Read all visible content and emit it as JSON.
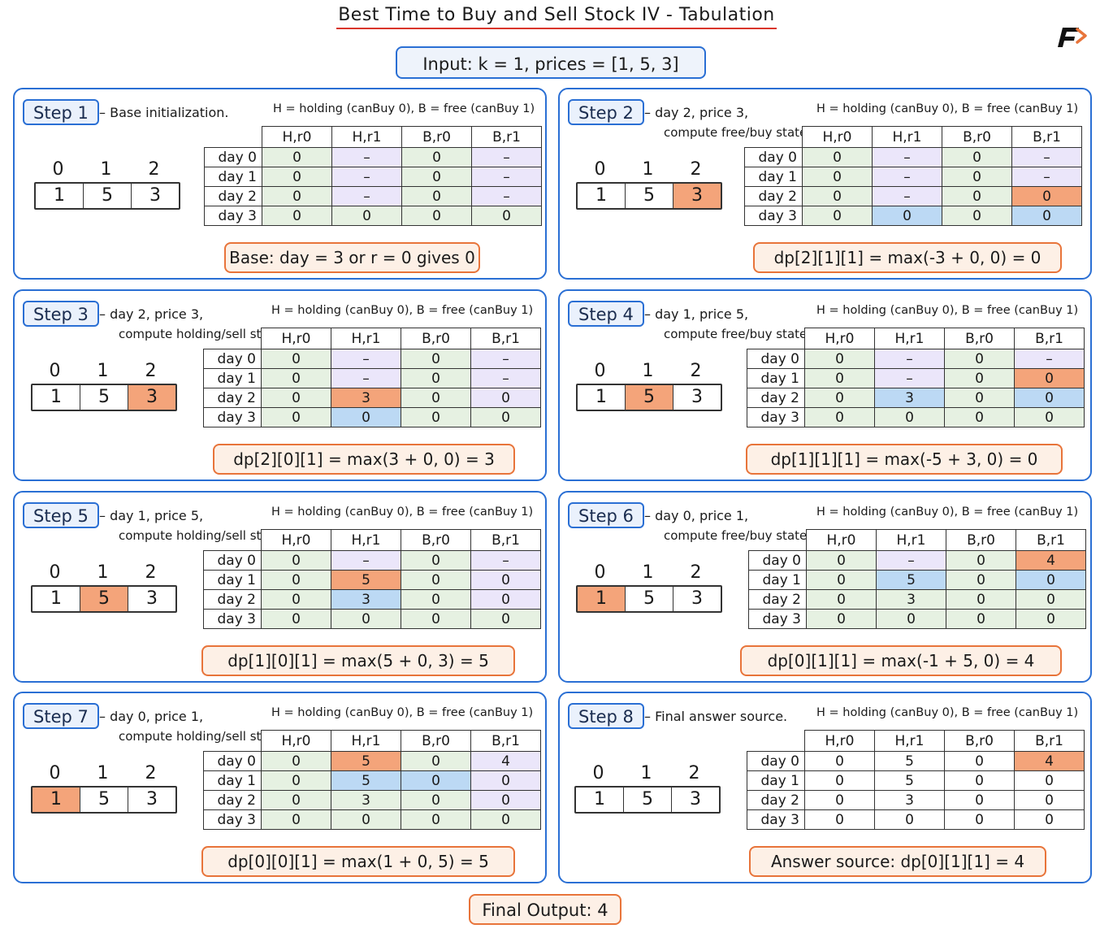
{
  "title": "Best Time to Buy and Sell Stock IV - Tabulation",
  "input_label": "Input:  k = 1,  prices = [1, 5, 3]",
  "final_output": "Final Output: 4",
  "legend": "H = holding (canBuy 0), B = free (canBuy 1)",
  "columns": [
    "H,r0",
    "H,r1",
    "B,r0",
    "B,r1"
  ],
  "row_labels": [
    "day 0",
    "day 1",
    "day 2",
    "day 3"
  ],
  "array_indices": [
    "0",
    "1",
    "2"
  ],
  "prices": [
    "1",
    "5",
    "3"
  ],
  "colors": {
    "accent_blue": "#2a6fd4",
    "orange": "#e8743a",
    "highlight": "#f4a47a",
    "blue_cell": "#bcd9f4",
    "purple_cell": "#ebe6fa",
    "green_cell": "#e6f1e2"
  },
  "steps": [
    {
      "label": "Step 1",
      "desc1": "Base initialization.",
      "desc2": "",
      "highlight_index": -1,
      "formula": "Base:  day = 3  or  r = 0  gives  0",
      "rows": [
        [
          "0",
          "-",
          "0",
          "-"
        ],
        [
          "0",
          "-",
          "0",
          "-"
        ],
        [
          "0",
          "-",
          "0",
          "-"
        ],
        [
          "0",
          "0",
          "0",
          "0"
        ]
      ],
      "colors": [
        [
          "g",
          "p",
          "g",
          "p"
        ],
        [
          "g",
          "p",
          "g",
          "p"
        ],
        [
          "g",
          "p",
          "g",
          "p"
        ],
        [
          "g",
          "g",
          "g",
          "g"
        ]
      ]
    },
    {
      "label": "Step 2",
      "desc1": "day 2, price 3,",
      "desc2": "compute free/buy state.",
      "highlight_index": 2,
      "formula": "dp[2][1][1] = max(-3 + 0, 0) = 0",
      "rows": [
        [
          "0",
          "-",
          "0",
          "-"
        ],
        [
          "0",
          "-",
          "0",
          "-"
        ],
        [
          "0",
          "-",
          "0",
          "0"
        ],
        [
          "0",
          "0",
          "0",
          "0"
        ]
      ],
      "colors": [
        [
          "g",
          "p",
          "g",
          "p"
        ],
        [
          "g",
          "p",
          "g",
          "p"
        ],
        [
          "g",
          "p",
          "g",
          "o"
        ],
        [
          "g",
          "b",
          "g",
          "b"
        ]
      ]
    },
    {
      "label": "Step 3",
      "desc1": "day 2, price 3,",
      "desc2": "compute holding/sell state.",
      "highlight_index": 2,
      "formula": "dp[2][0][1] = max(3 + 0, 0) = 3",
      "rows": [
        [
          "0",
          "-",
          "0",
          "-"
        ],
        [
          "0",
          "-",
          "0",
          "-"
        ],
        [
          "0",
          "3",
          "0",
          "0"
        ],
        [
          "0",
          "0",
          "0",
          "0"
        ]
      ],
      "colors": [
        [
          "g",
          "p",
          "g",
          "p"
        ],
        [
          "g",
          "p",
          "g",
          "p"
        ],
        [
          "g",
          "o",
          "g",
          "p"
        ],
        [
          "g",
          "b",
          "g",
          "g"
        ]
      ]
    },
    {
      "label": "Step 4",
      "desc1": "day 1, price 5,",
      "desc2": "compute free/buy state.",
      "highlight_index": 1,
      "formula": "dp[1][1][1] = max(-5 + 3, 0) = 0",
      "rows": [
        [
          "0",
          "-",
          "0",
          "-"
        ],
        [
          "0",
          "-",
          "0",
          "0"
        ],
        [
          "0",
          "3",
          "0",
          "0"
        ],
        [
          "0",
          "0",
          "0",
          "0"
        ]
      ],
      "colors": [
        [
          "g",
          "p",
          "g",
          "p"
        ],
        [
          "g",
          "p",
          "g",
          "o"
        ],
        [
          "g",
          "b",
          "g",
          "b"
        ],
        [
          "g",
          "g",
          "g",
          "g"
        ]
      ]
    },
    {
      "label": "Step 5",
      "desc1": "day 1, price 5,",
      "desc2": "compute holding/sell state.",
      "highlight_index": 1,
      "formula": "dp[1][0][1] = max(5 + 0, 3) = 5",
      "rows": [
        [
          "0",
          "-",
          "0",
          "-"
        ],
        [
          "0",
          "5",
          "0",
          "0"
        ],
        [
          "0",
          "3",
          "0",
          "0"
        ],
        [
          "0",
          "0",
          "0",
          "0"
        ]
      ],
      "colors": [
        [
          "g",
          "p",
          "g",
          "p"
        ],
        [
          "g",
          "o",
          "g",
          "p"
        ],
        [
          "g",
          "b",
          "g",
          "p"
        ],
        [
          "g",
          "g",
          "g",
          "g"
        ]
      ]
    },
    {
      "label": "Step 6",
      "desc1": "day 0, price 1,",
      "desc2": "compute free/buy state.",
      "highlight_index": 0,
      "formula": "dp[0][1][1] = max(-1 + 5, 0) = 4",
      "rows": [
        [
          "0",
          "-",
          "0",
          "4"
        ],
        [
          "0",
          "5",
          "0",
          "0"
        ],
        [
          "0",
          "3",
          "0",
          "0"
        ],
        [
          "0",
          "0",
          "0",
          "0"
        ]
      ],
      "colors": [
        [
          "g",
          "p",
          "g",
          "o"
        ],
        [
          "g",
          "b",
          "g",
          "b"
        ],
        [
          "g",
          "g",
          "g",
          "g"
        ],
        [
          "g",
          "g",
          "g",
          "g"
        ]
      ]
    },
    {
      "label": "Step 7",
      "desc1": "day 0, price 1,",
      "desc2": "compute holding/sell state.",
      "highlight_index": 0,
      "formula": "dp[0][0][1] = max(1 + 0, 5) = 5",
      "rows": [
        [
          "0",
          "5",
          "0",
          "4"
        ],
        [
          "0",
          "5",
          "0",
          "0"
        ],
        [
          "0",
          "3",
          "0",
          "0"
        ],
        [
          "0",
          "0",
          "0",
          "0"
        ]
      ],
      "colors": [
        [
          "g",
          "o",
          "g",
          "p"
        ],
        [
          "g",
          "b",
          "b",
          "p"
        ],
        [
          "g",
          "g",
          "g",
          "p"
        ],
        [
          "g",
          "g",
          "g",
          "g"
        ]
      ]
    },
    {
      "label": "Step 8",
      "desc1": "Final answer source.",
      "desc2": "",
      "highlight_index": -1,
      "formula": "Answer source:  dp[0][1][1] = 4",
      "rows": [
        [
          "0",
          "5",
          "0",
          "4"
        ],
        [
          "0",
          "5",
          "0",
          "0"
        ],
        [
          "0",
          "3",
          "0",
          "0"
        ],
        [
          "0",
          "0",
          "0",
          "0"
        ]
      ],
      "colors": [
        [
          "w",
          "w",
          "w",
          "o"
        ],
        [
          "w",
          "w",
          "w",
          "w"
        ],
        [
          "w",
          "w",
          "w",
          "w"
        ],
        [
          "w",
          "w",
          "w",
          "w"
        ]
      ]
    }
  ]
}
